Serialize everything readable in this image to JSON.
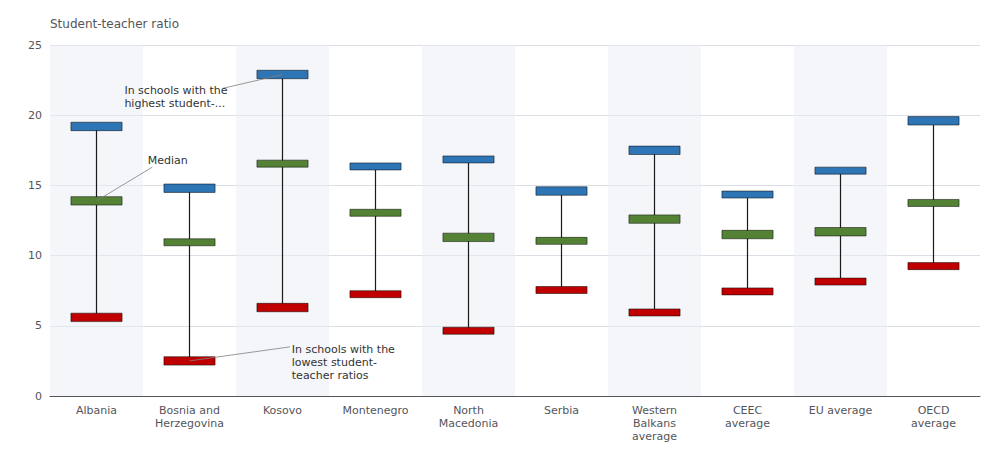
{
  "chart_data": {
    "type": "range",
    "categories": [
      "Albania",
      "Bosnia and\nHerzegovina",
      "Kosovo",
      "Montenegro",
      "North\nMacedonia",
      "Serbia",
      "Western\nBalkans\naverage",
      "CEEC\naverage",
      "EU average",
      "OECD\naverage"
    ],
    "ylabel": "Student-teacher ratio",
    "ylim": [
      0,
      25
    ],
    "yticks": [
      0,
      5,
      10,
      15,
      20,
      25
    ],
    "grid": true,
    "series": [
      {
        "type": "line",
        "color": "#1a1a1a",
        "bottom": [
          5.6,
          2.5,
          6.3,
          7.3,
          4.7,
          7.6,
          5.95,
          7.45,
          8.15,
          9.25
        ],
        "top": [
          19.2,
          14.8,
          22.9,
          16.4,
          16.9,
          14.6,
          17.5,
          14.4,
          16.1,
          19.6
        ]
      },
      {
        "type": "bar",
        "color": "#2e75b6",
        "bottom": [
          18.9,
          14.5,
          22.6,
          16.1,
          16.6,
          14.3,
          17.2,
          14.1,
          15.8,
          19.3
        ],
        "top": [
          19.5,
          15.1,
          23.2,
          16.6,
          17.1,
          14.9,
          17.8,
          14.6,
          16.3,
          19.9
        ],
        "annotation": {
          "text": "In schools with the\nhighest student-...",
          "category": "Kosovo"
        }
      },
      {
        "type": "bar",
        "color": "#548235",
        "bottom": [
          13.6,
          10.7,
          16.3,
          12.8,
          11.0,
          10.8,
          12.3,
          11.2,
          11.4,
          13.5
        ],
        "top": [
          14.2,
          11.2,
          16.8,
          13.3,
          11.6,
          11.3,
          12.9,
          11.8,
          12.0,
          14.0
        ],
        "annotation": {
          "text": "Median",
          "category": "Albania"
        }
      },
      {
        "type": "bar",
        "color": "#c00000",
        "bottom": [
          5.3,
          2.2,
          6.0,
          7.0,
          4.4,
          7.3,
          5.7,
          7.2,
          7.9,
          9.0
        ],
        "top": [
          5.9,
          2.8,
          6.6,
          7.5,
          4.9,
          7.8,
          6.2,
          7.7,
          8.4,
          9.5
        ],
        "annotation": {
          "text": "In schools with the\nlowest student-\nteacher ratios",
          "category": "Bosnia and\nHerzegovina"
        }
      }
    ]
  }
}
